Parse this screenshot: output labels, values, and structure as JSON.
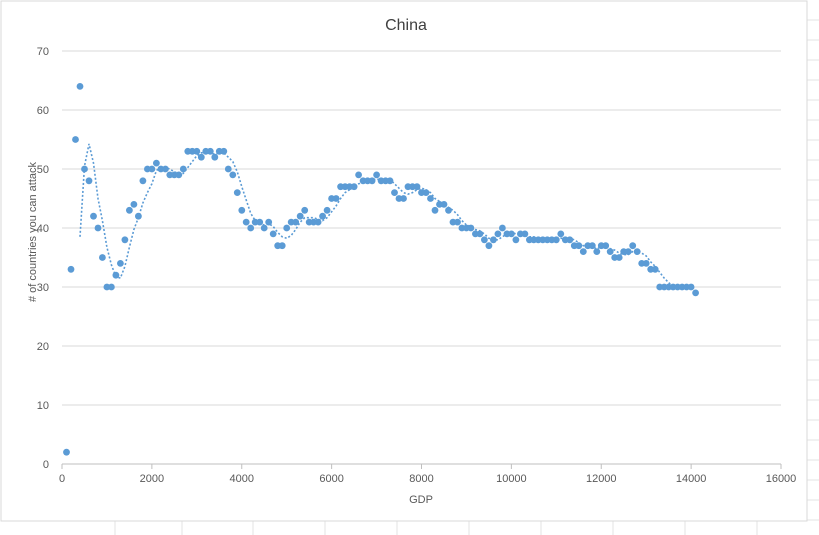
{
  "chart_data": {
    "type": "scatter",
    "title": "China",
    "xlabel": "GDP",
    "ylabel": "# of countries you can attack",
    "xlim": [
      0,
      16000
    ],
    "ylim": [
      0,
      70
    ],
    "xticks": [
      0,
      2000,
      4000,
      6000,
      8000,
      10000,
      12000,
      14000,
      16000
    ],
    "yticks": [
      0,
      10,
      20,
      30,
      40,
      50,
      60,
      70
    ],
    "grid": true,
    "legend": "none",
    "trendline": "moving-average",
    "colors": {
      "series": "#5b9bd5",
      "grid": "#d9d9d9",
      "text": "#595959"
    },
    "series": [
      {
        "points": [
          [
            100,
            2
          ],
          [
            200,
            33
          ],
          [
            300,
            55
          ],
          [
            400,
            64
          ],
          [
            500,
            50
          ],
          [
            600,
            48
          ],
          [
            700,
            42
          ],
          [
            800,
            40
          ],
          [
            900,
            35
          ],
          [
            1000,
            30
          ],
          [
            1100,
            30
          ],
          [
            1200,
            32
          ],
          [
            1300,
            34
          ],
          [
            1400,
            38
          ],
          [
            1500,
            43
          ],
          [
            1600,
            44
          ],
          [
            1700,
            42
          ],
          [
            1800,
            48
          ],
          [
            1900,
            50
          ],
          [
            2000,
            50
          ],
          [
            2100,
            51
          ],
          [
            2200,
            50
          ],
          [
            2300,
            50
          ],
          [
            2400,
            49
          ],
          [
            2500,
            49
          ],
          [
            2600,
            49
          ],
          [
            2700,
            50
          ],
          [
            2800,
            53
          ],
          [
            2900,
            53
          ],
          [
            3000,
            53
          ],
          [
            3100,
            52
          ],
          [
            3200,
            53
          ],
          [
            3300,
            53
          ],
          [
            3400,
            52
          ],
          [
            3500,
            53
          ],
          [
            3600,
            53
          ],
          [
            3700,
            50
          ],
          [
            3800,
            49
          ],
          [
            3900,
            46
          ],
          [
            4000,
            43
          ],
          [
            4100,
            41
          ],
          [
            4200,
            40
          ],
          [
            4300,
            41
          ],
          [
            4400,
            41
          ],
          [
            4500,
            40
          ],
          [
            4600,
            41
          ],
          [
            4700,
            39
          ],
          [
            4800,
            37
          ],
          [
            4900,
            37
          ],
          [
            5000,
            40
          ],
          [
            5100,
            41
          ],
          [
            5200,
            41
          ],
          [
            5300,
            42
          ],
          [
            5400,
            43
          ],
          [
            5500,
            41
          ],
          [
            5600,
            41
          ],
          [
            5700,
            41
          ],
          [
            5800,
            42
          ],
          [
            5900,
            43
          ],
          [
            6000,
            45
          ],
          [
            6100,
            45
          ],
          [
            6200,
            47
          ],
          [
            6300,
            47
          ],
          [
            6400,
            47
          ],
          [
            6500,
            47
          ],
          [
            6600,
            49
          ],
          [
            6700,
            48
          ],
          [
            6800,
            48
          ],
          [
            6900,
            48
          ],
          [
            7000,
            49
          ],
          [
            7100,
            48
          ],
          [
            7200,
            48
          ],
          [
            7300,
            48
          ],
          [
            7400,
            46
          ],
          [
            7500,
            45
          ],
          [
            7600,
            45
          ],
          [
            7700,
            47
          ],
          [
            7800,
            47
          ],
          [
            7900,
            47
          ],
          [
            8000,
            46
          ],
          [
            8100,
            46
          ],
          [
            8200,
            45
          ],
          [
            8300,
            43
          ],
          [
            8400,
            44
          ],
          [
            8500,
            44
          ],
          [
            8600,
            43
          ],
          [
            8700,
            41
          ],
          [
            8800,
            41
          ],
          [
            8900,
            40
          ],
          [
            9000,
            40
          ],
          [
            9100,
            40
          ],
          [
            9200,
            39
          ],
          [
            9300,
            39
          ],
          [
            9400,
            38
          ],
          [
            9500,
            37
          ],
          [
            9600,
            38
          ],
          [
            9700,
            39
          ],
          [
            9800,
            40
          ],
          [
            9900,
            39
          ],
          [
            10000,
            39
          ],
          [
            10100,
            38
          ],
          [
            10200,
            39
          ],
          [
            10300,
            39
          ],
          [
            10400,
            38
          ],
          [
            10500,
            38
          ],
          [
            10600,
            38
          ],
          [
            10700,
            38
          ],
          [
            10800,
            38
          ],
          [
            10900,
            38
          ],
          [
            11000,
            38
          ],
          [
            11100,
            39
          ],
          [
            11200,
            38
          ],
          [
            11300,
            38
          ],
          [
            11400,
            37
          ],
          [
            11500,
            37
          ],
          [
            11600,
            36
          ],
          [
            11700,
            37
          ],
          [
            11800,
            37
          ],
          [
            11900,
            36
          ],
          [
            12000,
            37
          ],
          [
            12100,
            37
          ],
          [
            12200,
            36
          ],
          [
            12300,
            35
          ],
          [
            12400,
            35
          ],
          [
            12500,
            36
          ],
          [
            12600,
            36
          ],
          [
            12700,
            37
          ],
          [
            12800,
            36
          ],
          [
            12900,
            34
          ],
          [
            13000,
            34
          ],
          [
            13100,
            33
          ],
          [
            13200,
            33
          ],
          [
            13300,
            30
          ],
          [
            13400,
            30
          ],
          [
            13500,
            30
          ],
          [
            13600,
            30
          ],
          [
            13700,
            30
          ],
          [
            13800,
            30
          ],
          [
            13900,
            30
          ],
          [
            14000,
            30
          ],
          [
            14100,
            29
          ]
        ]
      }
    ]
  }
}
